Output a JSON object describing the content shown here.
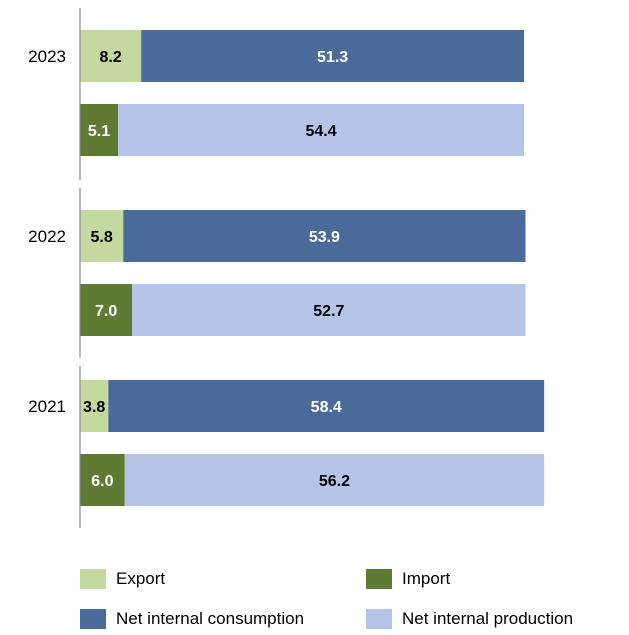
{
  "chart_data": {
    "type": "bar",
    "orientation": "horizontal",
    "stacked": true,
    "groups": [
      {
        "year": "2023",
        "bars": [
          {
            "segments": [
              {
                "series": "Export",
                "value": 8.2
              },
              {
                "series": "Net internal consumption",
                "value": 51.3
              }
            ]
          },
          {
            "segments": [
              {
                "series": "Import",
                "value": 5.1
              },
              {
                "series": "Net internal production",
                "value": 54.4
              }
            ]
          }
        ]
      },
      {
        "year": "2022",
        "bars": [
          {
            "segments": [
              {
                "series": "Export",
                "value": 5.8
              },
              {
                "series": "Net internal consumption",
                "value": 53.9
              }
            ]
          },
          {
            "segments": [
              {
                "series": "Import",
                "value": 7.0
              },
              {
                "series": "Net internal production",
                "value": 52.7
              }
            ]
          }
        ]
      },
      {
        "year": "2021",
        "bars": [
          {
            "segments": [
              {
                "series": "Export",
                "value": 3.8
              },
              {
                "series": "Net internal consumption",
                "value": 58.4
              }
            ]
          },
          {
            "segments": [
              {
                "series": "Import",
                "value": 6.0
              },
              {
                "series": "Net internal production",
                "value": 56.2
              }
            ]
          }
        ]
      }
    ],
    "xlim": [
      0,
      59.5
    ],
    "grid": false,
    "legend_position": "bottom",
    "title": "",
    "xlabel": "",
    "ylabel": ""
  },
  "legend": [
    {
      "label": "Export",
      "color": "#C4D9A0"
    },
    {
      "label": "Import",
      "color": "#5F7A33"
    },
    {
      "label": "Net internal consumption",
      "color": "#4A6A9A"
    },
    {
      "label": "Net internal production",
      "color": "#B7C4EA"
    }
  ],
  "label_colors": {
    "Export": "#000000",
    "Import": "#ffffff",
    "Net internal consumption": "#ffffff",
    "Net internal production": "#000000"
  }
}
